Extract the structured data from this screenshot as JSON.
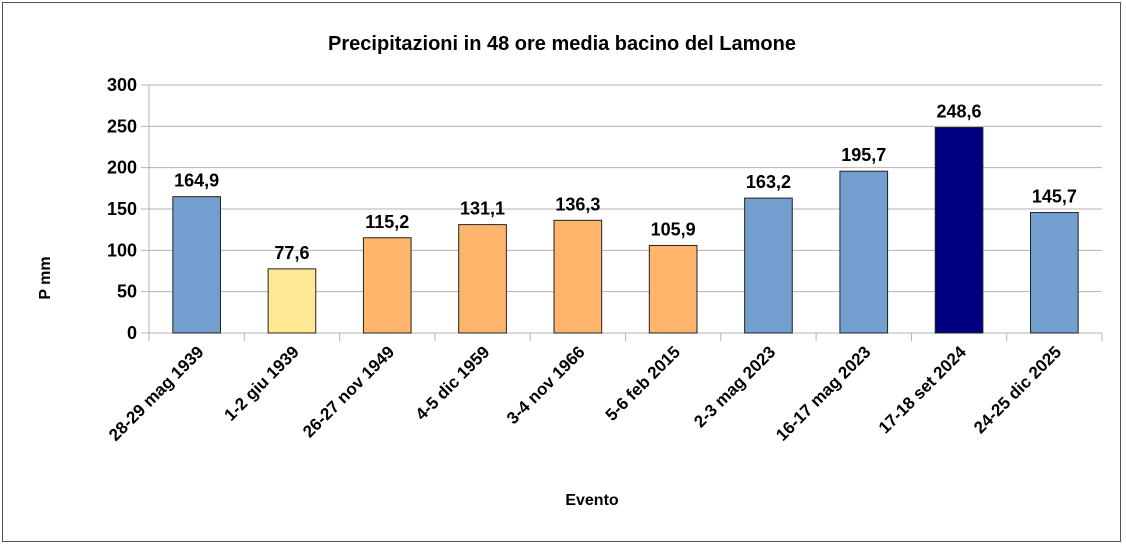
{
  "chart_data": {
    "type": "bar",
    "title": "Precipitazioni in 48 ore media bacino del Lamone",
    "xlabel": "Evento",
    "ylabel": "P mm",
    "ylim": [
      0,
      300
    ],
    "yticks": [
      0,
      50,
      100,
      150,
      200,
      250,
      300
    ],
    "grid": true,
    "legend": "none",
    "categories": [
      "28-29 mag 1939",
      "1-2 giu 1939",
      "26-27 nov 1949",
      "4-5 dic 1959",
      "3-4 nov 1966",
      "5-6 feb 2015",
      "2-3 mag 2023",
      "16-17 mag 2023",
      "17-18 set 2024",
      "24-25 dic 2025"
    ],
    "values": [
      164.9,
      77.6,
      115.2,
      131.1,
      136.3,
      105.9,
      163.2,
      195.7,
      248.6,
      145.7
    ],
    "labels": [
      "164,9",
      "77,6",
      "115,2",
      "131,1",
      "136,3",
      "105,9",
      "163,2",
      "195,7",
      "248,6",
      "145,7"
    ],
    "colors": [
      "#729fcf",
      "#ffe994",
      "#ffb66c",
      "#ffb66c",
      "#ffb66c",
      "#ffb66c",
      "#729fcf",
      "#729fcf",
      "#000080",
      "#729fcf"
    ]
  }
}
